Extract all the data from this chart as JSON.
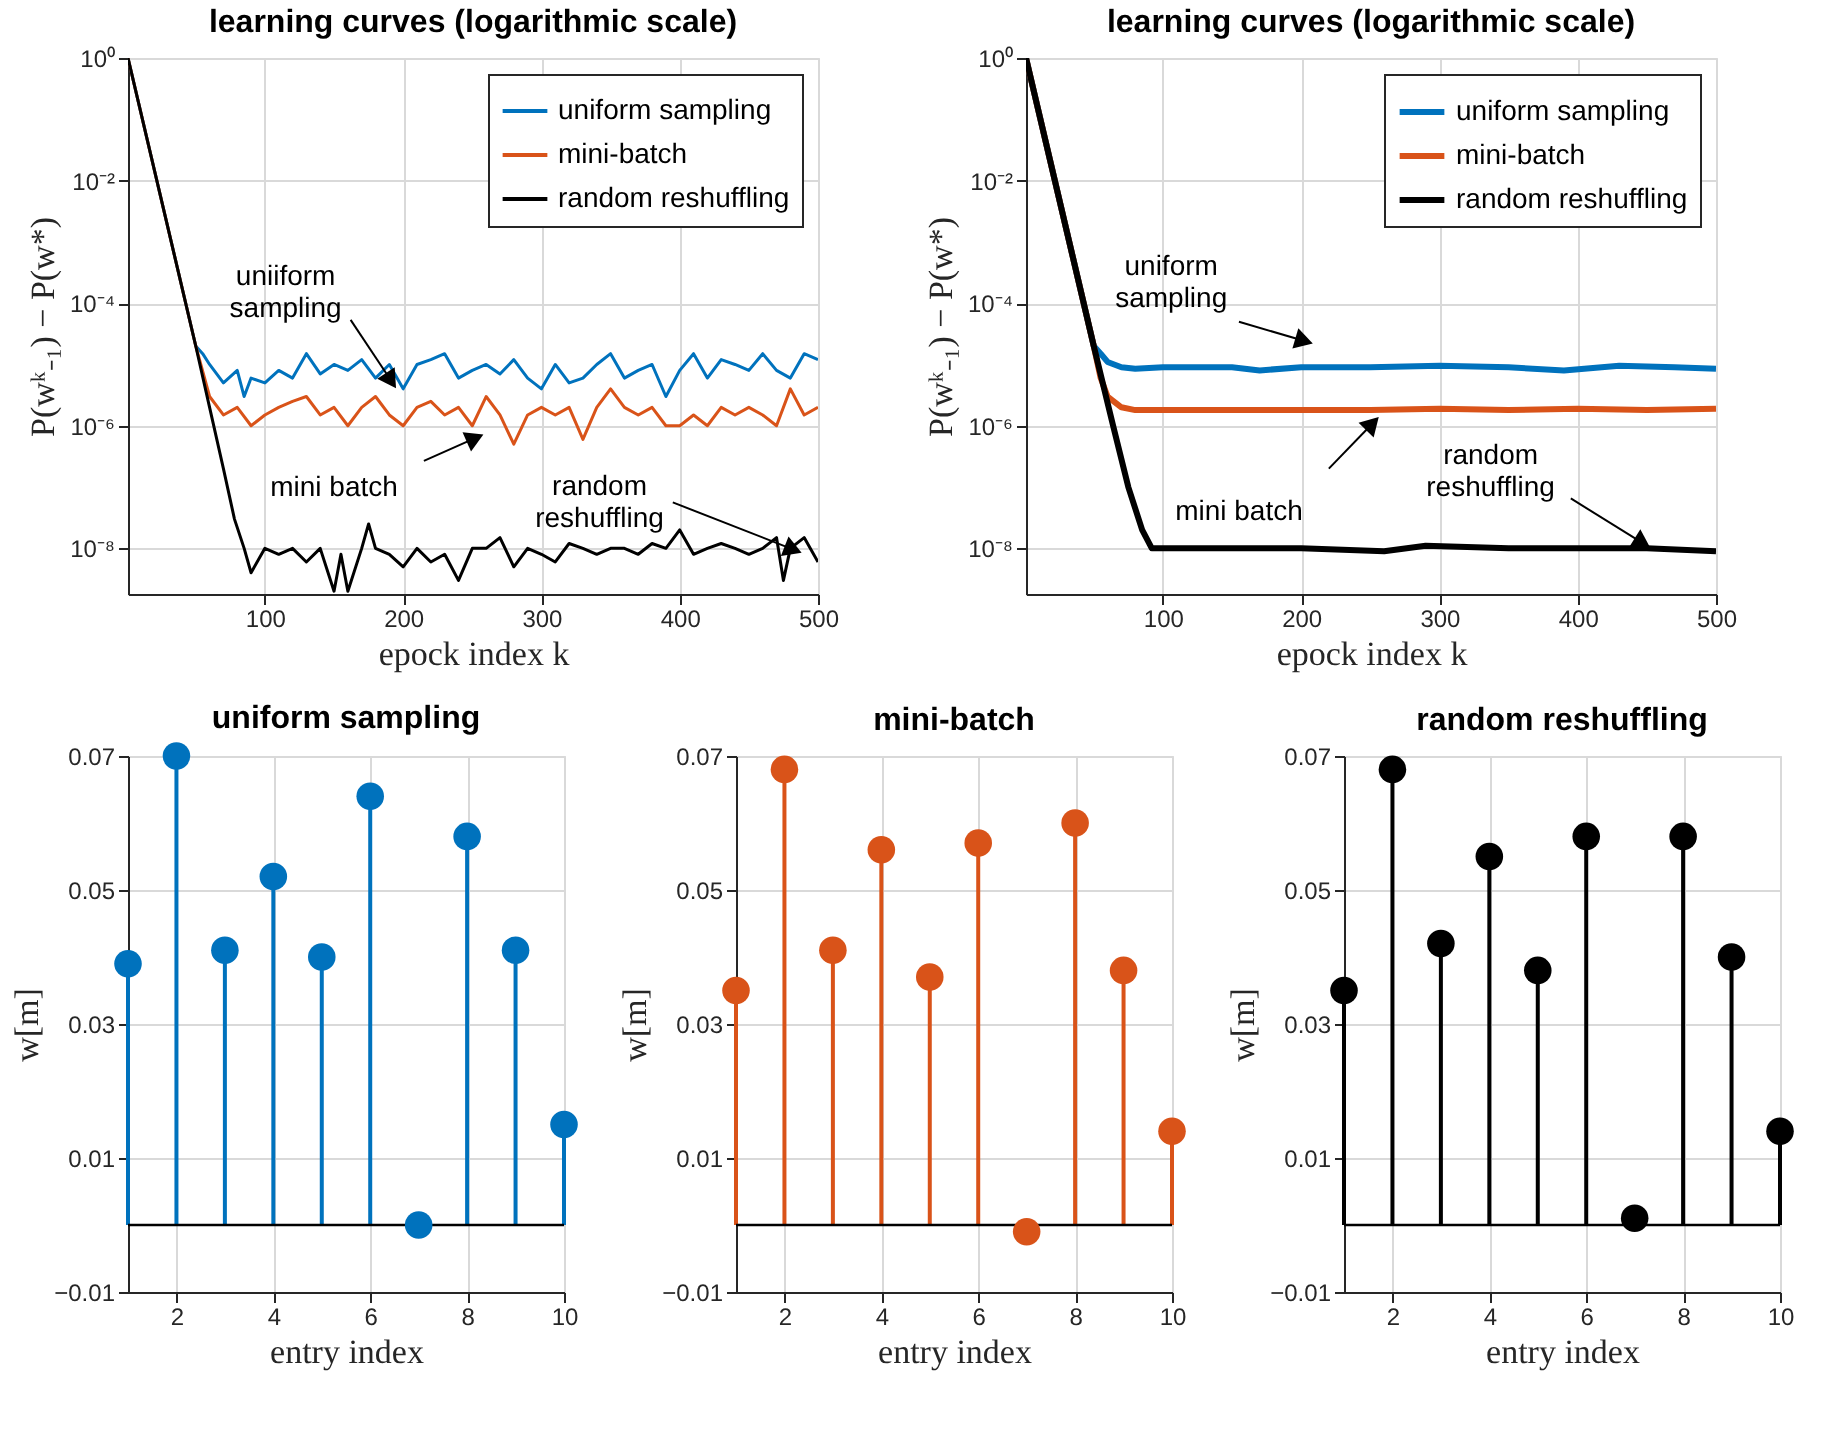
{
  "chart_data": [
    {
      "type": "line",
      "title": "learning curves (logarithmic scale)",
      "xlabel": "epock index k",
      "ylabel": "P(wᵏ₋₁) − P(w*)",
      "log": "y",
      "xlim": [
        1,
        500
      ],
      "xticks": [
        100,
        200,
        300,
        400,
        500
      ],
      "ylim": [
        1.8e-09,
        1
      ],
      "yticks": [
        {
          "value": 1,
          "label": "10⁰"
        },
        {
          "value": 0.01,
          "label": "10⁻²"
        },
        {
          "value": 0.0001,
          "label": "10⁻⁴"
        },
        {
          "value": 1e-06,
          "label": "10⁻⁶"
        },
        {
          "value": 1e-08,
          "label": "10⁻⁸"
        }
      ],
      "grid": true,
      "legend": "top right",
      "marker": "none",
      "line_style": "solid",
      "series": [
        {
          "name": "uniform sampling",
          "color": "#0072bd",
          "x": [
            1,
            50,
            55,
            60,
            70,
            80,
            85,
            90,
            100,
            110,
            120,
            130,
            140,
            150,
            160,
            170,
            180,
            190,
            200,
            210,
            220,
            230,
            240,
            250,
            260,
            270,
            280,
            290,
            300,
            310,
            320,
            330,
            340,
            350,
            360,
            370,
            380,
            390,
            400,
            410,
            420,
            430,
            440,
            450,
            460,
            470,
            480,
            490,
            500
          ],
          "values": [
            1,
            2e-05,
            1.5e-05,
            1e-05,
            5e-06,
            8e-06,
            3e-06,
            6e-06,
            5e-06,
            8e-06,
            6e-06,
            1.5e-05,
            7e-06,
            1e-05,
            8e-06,
            1.2e-05,
            6e-06,
            1e-05,
            4e-06,
            1e-05,
            1.2e-05,
            1.5e-05,
            6e-06,
            8e-06,
            1e-05,
            7e-06,
            1.2e-05,
            6e-06,
            4e-06,
            1e-05,
            5e-06,
            6e-06,
            1e-05,
            1.5e-05,
            6e-06,
            8e-06,
            1e-05,
            3e-06,
            8e-06,
            1.5e-05,
            6e-06,
            1.2e-05,
            1e-05,
            8e-06,
            1.5e-05,
            8e-06,
            6e-06,
            1.5e-05,
            1.2e-05
          ]
        },
        {
          "name": "mini-batch",
          "color": "#d95319",
          "x": [
            1,
            50,
            60,
            70,
            80,
            90,
            100,
            110,
            120,
            130,
            140,
            150,
            160,
            170,
            180,
            190,
            200,
            210,
            220,
            230,
            240,
            250,
            260,
            270,
            280,
            290,
            300,
            310,
            320,
            330,
            340,
            350,
            360,
            370,
            380,
            390,
            400,
            410,
            420,
            430,
            440,
            450,
            460,
            470,
            480,
            490,
            500
          ],
          "values": [
            1,
            2e-05,
            3e-06,
            1.5e-06,
            2e-06,
            1e-06,
            1.5e-06,
            2e-06,
            2.5e-06,
            3e-06,
            1.5e-06,
            2e-06,
            1e-06,
            2e-06,
            3e-06,
            1.5e-06,
            1e-06,
            2e-06,
            2.5e-06,
            1.5e-06,
            2e-06,
            1e-06,
            3e-06,
            1.5e-06,
            5e-07,
            1.5e-06,
            2e-06,
            1.5e-06,
            2e-06,
            6e-07,
            2e-06,
            4e-06,
            2e-06,
            1.5e-06,
            2e-06,
            1e-06,
            1e-06,
            1.5e-06,
            1e-06,
            2e-06,
            1.5e-06,
            2e-06,
            1.5e-06,
            1e-06,
            4e-06,
            1.5e-06,
            2e-06
          ]
        },
        {
          "name": "random reshuffling",
          "color": "#000000",
          "x": [
            1,
            50,
            60,
            70,
            78,
            85,
            90,
            100,
            110,
            120,
            130,
            140,
            150,
            155,
            160,
            170,
            175,
            180,
            190,
            200,
            210,
            220,
            230,
            240,
            250,
            260,
            270,
            280,
            290,
            300,
            310,
            320,
            330,
            340,
            350,
            360,
            370,
            380,
            390,
            400,
            410,
            420,
            430,
            440,
            450,
            460,
            470,
            475,
            480,
            490,
            500
          ],
          "values": [
            1,
            2e-05,
            2e-06,
            2e-07,
            3e-08,
            1e-08,
            4e-09,
            1e-08,
            8e-09,
            1e-08,
            6e-09,
            1e-08,
            2e-09,
            8e-09,
            2e-09,
            1e-08,
            2.5e-08,
            1e-08,
            8e-09,
            5e-09,
            1e-08,
            6e-09,
            8e-09,
            3e-09,
            1e-08,
            1e-08,
            1.5e-08,
            5e-09,
            1e-08,
            8e-09,
            6e-09,
            1.2e-08,
            1e-08,
            8e-09,
            1e-08,
            1e-08,
            8e-09,
            1.2e-08,
            1e-08,
            2e-08,
            8e-09,
            1e-08,
            1.2e-08,
            1e-08,
            8e-09,
            1e-08,
            1.5e-08,
            3e-09,
            1e-08,
            1.5e-08,
            6e-09
          ]
        }
      ],
      "annotations": [
        {
          "text": "uniiform\nsampling",
          "x": 190,
          "y": 6e-06
        },
        {
          "text": "mini batch",
          "x": 250,
          "y": 6e-07
        },
        {
          "text": "random\nreshuffling",
          "x": 480,
          "y": 1e-08
        }
      ]
    },
    {
      "type": "line",
      "title": "learning curves (logarithmic scale)",
      "xlabel": "epock index k",
      "ylabel": "P(wᵏ₋₁) − P(w*)",
      "log": "y",
      "xlim": [
        1,
        500
      ],
      "xticks": [
        100,
        200,
        300,
        400,
        500
      ],
      "ylim": [
        1.8e-09,
        1
      ],
      "yticks": [
        {
          "value": 1,
          "label": "10⁰"
        },
        {
          "value": 0.01,
          "label": "10⁻²"
        },
        {
          "value": 0.0001,
          "label": "10⁻⁴"
        },
        {
          "value": 1e-06,
          "label": "10⁻⁶"
        },
        {
          "value": 1e-08,
          "label": "10⁻⁸"
        }
      ],
      "grid": true,
      "legend": "top right",
      "marker": "none",
      "line_style": "solid",
      "series": [
        {
          "name": "uniform sampling",
          "color": "#0072bd",
          "x": [
            1,
            50,
            55,
            60,
            70,
            80,
            100,
            150,
            170,
            200,
            250,
            300,
            350,
            390,
            430,
            470,
            500
          ],
          "values": [
            1,
            2e-05,
            1.5e-05,
            1.1e-05,
            9e-06,
            8.5e-06,
            9e-06,
            9e-06,
            8e-06,
            9e-06,
            9e-06,
            9.5e-06,
            9e-06,
            8e-06,
            9.5e-06,
            9e-06,
            8.5e-06
          ]
        },
        {
          "name": "mini-batch",
          "color": "#d95319",
          "x": [
            1,
            50,
            55,
            60,
            70,
            80,
            100,
            150,
            200,
            250,
            300,
            350,
            400,
            450,
            500
          ],
          "values": [
            1,
            2e-05,
            6e-06,
            3e-06,
            2e-06,
            1.8e-06,
            1.8e-06,
            1.8e-06,
            1.8e-06,
            1.8e-06,
            1.9e-06,
            1.8e-06,
            1.9e-06,
            1.8e-06,
            1.9e-06
          ]
        },
        {
          "name": "random reshuffling",
          "color": "#000000",
          "x": [
            1,
            50,
            64,
            75,
            85,
            92,
            150,
            200,
            260,
            290,
            350,
            400,
            450,
            500
          ],
          "values": [
            1,
            2e-05,
            1e-06,
            1e-07,
            2e-08,
            1e-08,
            1e-08,
            1e-08,
            9e-09,
            1.1e-08,
            1e-08,
            1e-08,
            1e-08,
            9e-09
          ]
        }
      ],
      "annotations": [
        {
          "text": "uniform\nsampling",
          "x": 200,
          "y": 2.5e-05
        },
        {
          "text": "mini batch",
          "x": 250,
          "y": 1e-06
        },
        {
          "text": "random\nreshuffling",
          "x": 445,
          "y": 1.3e-08
        }
      ]
    },
    {
      "type": "lollipop",
      "title": "uniform sampling",
      "xlabel": "entry index",
      "ylabel": "w[m]",
      "x": [
        1,
        2,
        3,
        4,
        5,
        6,
        7,
        8,
        9,
        10
      ],
      "xlim": [
        1,
        10
      ],
      "xticks": [
        2,
        4,
        6,
        8,
        10
      ],
      "ylim": [
        -0.01,
        0.07
      ],
      "yticks": [
        -0.01,
        0.01,
        0.03,
        0.05,
        0.07
      ],
      "grid": true,
      "marker": "circle",
      "series": [
        {
          "color": "#0072bd",
          "values": [
            0.039,
            0.07,
            0.041,
            0.052,
            0.04,
            0.064,
            0.0,
            0.058,
            0.041,
            0.015
          ]
        }
      ],
      "ref_lines": [
        {
          "axis": "y",
          "value": 0,
          "color": "#000000"
        }
      ]
    },
    {
      "type": "lollipop",
      "title": "mini-batch",
      "xlabel": "entry index",
      "ylabel": "w[m]",
      "x": [
        1,
        2,
        3,
        4,
        5,
        6,
        7,
        8,
        9,
        10
      ],
      "xlim": [
        1,
        10
      ],
      "xticks": [
        2,
        4,
        6,
        8,
        10
      ],
      "ylim": [
        -0.01,
        0.07
      ],
      "yticks": [
        -0.01,
        0.01,
        0.03,
        0.05,
        0.07
      ],
      "grid": true,
      "marker": "circle",
      "series": [
        {
          "color": "#d95319",
          "values": [
            0.035,
            0.068,
            0.041,
            0.056,
            0.037,
            0.057,
            -0.001,
            0.06,
            0.038,
            0.014
          ]
        }
      ],
      "ref_lines": [
        {
          "axis": "y",
          "value": 0,
          "color": "#000000"
        }
      ]
    },
    {
      "type": "lollipop",
      "title": "random reshuffling",
      "xlabel": "entry index",
      "ylabel": "w[m]",
      "x": [
        1,
        2,
        3,
        4,
        5,
        6,
        7,
        8,
        9,
        10
      ],
      "xlim": [
        1,
        10
      ],
      "xticks": [
        2,
        4,
        6,
        8,
        10
      ],
      "ylim": [
        -0.01,
        0.07
      ],
      "yticks": [
        -0.01,
        0.01,
        0.03,
        0.05,
        0.07
      ],
      "grid": true,
      "marker": "circle",
      "series": [
        {
          "color": "#000000",
          "values": [
            0.035,
            0.068,
            0.042,
            0.055,
            0.038,
            0.058,
            0.001,
            0.058,
            0.04,
            0.014
          ]
        }
      ],
      "ref_lines": [
        {
          "axis": "y",
          "value": 0,
          "color": "#000000"
        }
      ]
    }
  ]
}
